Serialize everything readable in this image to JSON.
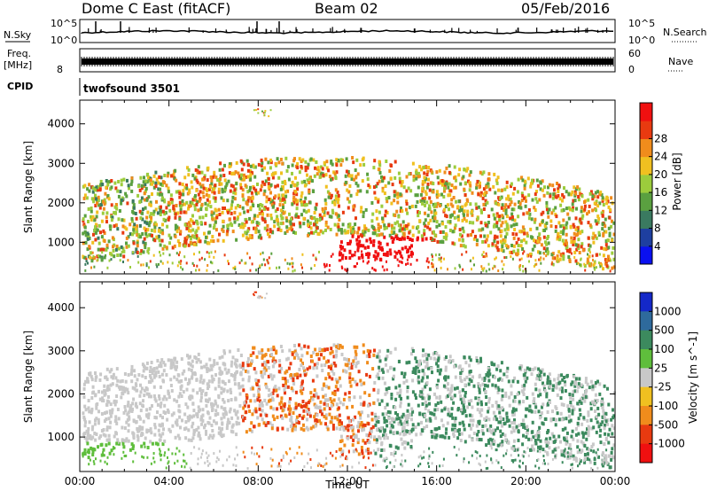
{
  "header": {
    "station": "Dome C East (fitACF)",
    "beam": "Beam 02",
    "date": "05/Feb/2016"
  },
  "strip_panels": {
    "nsky": {
      "label": "N.Sky",
      "top_tick": "10^5",
      "bottom_tick": "10^0"
    },
    "nsearch": {
      "label": "N.Search",
      "top_tick": "10^5",
      "bottom_tick": "10^0"
    },
    "freq": {
      "label": "Freq.",
      "unit": "[MHz]",
      "top_tick": "",
      "bottom_tick": "8"
    },
    "nave": {
      "label": "Nave",
      "top_tick": "60",
      "bottom_tick": "0"
    },
    "cpid": {
      "label": "CPID",
      "value": "twofsound 3501"
    }
  },
  "chart_data": [
    {
      "type": "heatmap",
      "title": "Power",
      "ylabel": "Slant Range [km]",
      "xlabel": "",
      "yticks": [
        "1000",
        "2000",
        "3000",
        "4000"
      ],
      "ylim": [
        200,
        4600
      ],
      "colorbar": {
        "label": "Power [dB]",
        "ticks": [
          "4",
          "8",
          "12",
          "16",
          "20",
          "24",
          "28"
        ],
        "colors": [
          "#0a10f0",
          "#1e3fa0",
          "#3a7a60",
          "#5aa040",
          "#9ccc3c",
          "#f0c020",
          "#f08c1c",
          "#e83a10",
          "#f01010"
        ]
      },
      "grid": false
    },
    {
      "type": "heatmap",
      "title": "Velocity",
      "ylabel": "Slant Range [km]",
      "xlabel": "Time UT",
      "xticks": [
        "00:00",
        "04:00",
        "08:00",
        "12:00",
        "16:00",
        "20:00",
        "00:00"
      ],
      "yticks": [
        "1000",
        "2000",
        "3000",
        "4000"
      ],
      "ylim": [
        200,
        4600
      ],
      "colorbar": {
        "label": "Velocity [m s^-1]",
        "ticks": [
          "1000",
          "500",
          "100",
          "25",
          "-25",
          "-100",
          "-500",
          "-1000"
        ],
        "colors": [
          "#1428c8",
          "#2e6a9c",
          "#3c8a5e",
          "#5fbe3c",
          "#c8c8c8",
          "#f0c020",
          "#f08c1c",
          "#e83a10",
          "#f01010"
        ]
      },
      "grid": false
    }
  ],
  "colors": {
    "frame": "#000000",
    "background": "#ffffff"
  }
}
